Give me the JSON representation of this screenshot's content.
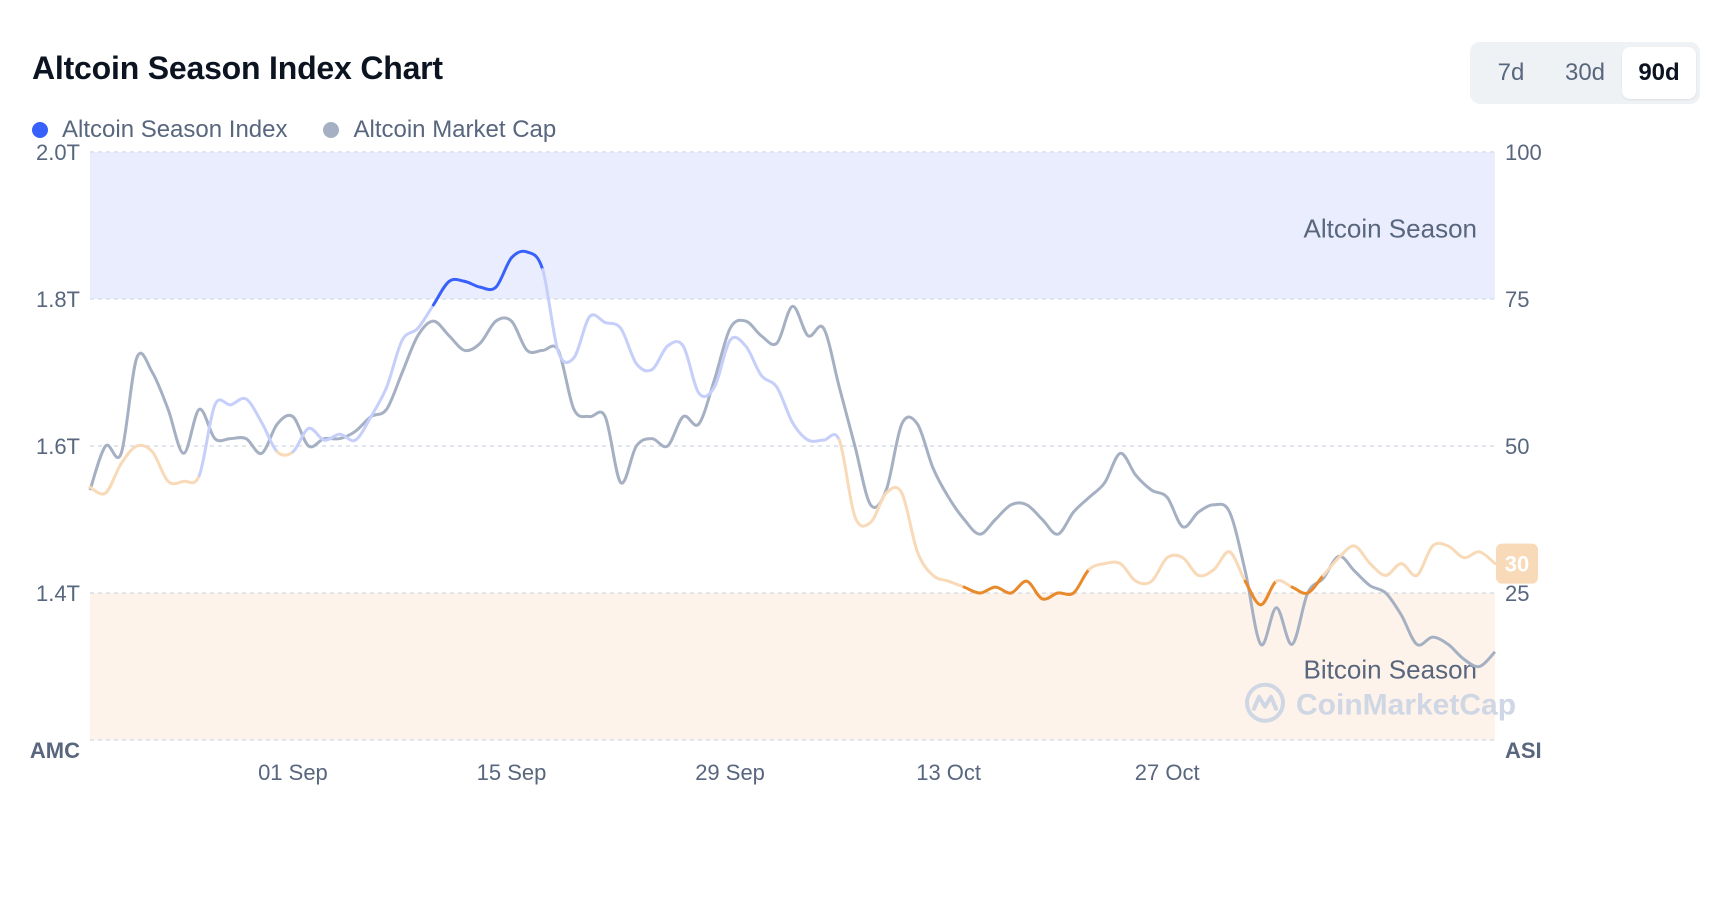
{
  "header": {
    "title": "Altcoin Season Index Chart"
  },
  "legend": [
    {
      "label": "Altcoin Season Index",
      "color": "#3861fb"
    },
    {
      "label": "Altcoin Market Cap",
      "color": "#a6b0c3"
    }
  ],
  "ranges": [
    {
      "label": "7d",
      "active": false
    },
    {
      "label": "30d",
      "active": false
    },
    {
      "label": "90d",
      "active": true
    }
  ],
  "zones": {
    "altcoin_season": "Altcoin Season",
    "bitcoin_season": "Bitcoin Season"
  },
  "watermark": "CoinMarketCap",
  "current_badge": "30",
  "colors": {
    "index_line_high": "#3861fb",
    "index_line_mid": "#c5cffa",
    "index_line_low_mid": "#f8d9b8",
    "index_line_low": "#e88a2b",
    "market_cap_line": "#a6b0c3",
    "altcoin_zone_fill": "#eaedfd",
    "bitcoin_zone_fill": "#fdf3ea",
    "badge_fill": "#f8d9b8"
  },
  "chart_data": {
    "type": "line",
    "x": [
      "2024-08-19",
      "2024-08-20",
      "2024-08-21",
      "2024-08-22",
      "2024-08-23",
      "2024-08-24",
      "2024-08-25",
      "2024-08-26",
      "2024-08-27",
      "2024-08-28",
      "2024-08-29",
      "2024-08-30",
      "2024-08-31",
      "2024-09-01",
      "2024-09-02",
      "2024-09-03",
      "2024-09-04",
      "2024-09-05",
      "2024-09-06",
      "2024-09-07",
      "2024-09-08",
      "2024-09-09",
      "2024-09-10",
      "2024-09-11",
      "2024-09-12",
      "2024-09-13",
      "2024-09-14",
      "2024-09-15",
      "2024-09-16",
      "2024-09-17",
      "2024-09-18",
      "2024-09-19",
      "2024-09-20",
      "2024-09-21",
      "2024-09-22",
      "2024-09-23",
      "2024-09-24",
      "2024-09-25",
      "2024-09-26",
      "2024-09-27",
      "2024-09-28",
      "2024-09-29",
      "2024-09-30",
      "2024-10-01",
      "2024-10-02",
      "2024-10-03",
      "2024-10-04",
      "2024-10-05",
      "2024-10-06",
      "2024-10-07",
      "2024-10-08",
      "2024-10-09",
      "2024-10-10",
      "2024-10-11",
      "2024-10-12",
      "2024-10-13",
      "2024-10-14",
      "2024-10-15",
      "2024-10-16",
      "2024-10-17",
      "2024-10-18",
      "2024-10-19",
      "2024-10-20",
      "2024-10-21",
      "2024-10-22",
      "2024-10-23",
      "2024-10-24",
      "2024-10-25",
      "2024-10-26",
      "2024-10-27",
      "2024-10-28",
      "2024-10-29",
      "2024-10-30",
      "2024-10-31",
      "2024-11-01",
      "2024-11-02",
      "2024-11-03",
      "2024-11-04",
      "2024-11-05",
      "2024-11-06",
      "2024-11-07",
      "2024-11-08",
      "2024-11-09",
      "2024-11-10",
      "2024-11-11",
      "2024-11-12",
      "2024-11-13",
      "2024-11-14",
      "2024-11-15",
      "2024-11-16",
      "2024-11-17"
    ],
    "x_ticks": [
      "01 Sep",
      "15 Sep",
      "29 Sep",
      "13 Oct",
      "27 Oct"
    ],
    "y_left": {
      "label": "AMC",
      "ticks": [
        "1.4T",
        "1.6T",
        "1.8T",
        "2.0T"
      ],
      "range": [
        1.2,
        2.0
      ],
      "unit": "T"
    },
    "y_right": {
      "label": "ASI",
      "ticks": [
        "25",
        "50",
        "75",
        "100"
      ],
      "range": [
        0,
        100
      ]
    },
    "series": [
      {
        "name": "Altcoin Season Index",
        "axis": "right",
        "values": [
          43,
          42,
          47,
          50,
          49,
          44,
          44,
          45,
          57,
          57,
          58,
          54,
          49,
          49,
          53,
          51,
          52,
          51,
          55,
          60,
          68,
          70,
          74,
          78,
          78,
          77,
          77,
          82,
          83,
          80,
          66,
          65,
          72,
          71,
          70,
          64,
          63,
          67,
          67,
          59,
          60,
          68,
          67,
          62,
          60,
          54,
          51,
          51,
          51,
          38,
          37,
          42,
          42,
          32,
          28,
          27,
          26,
          25,
          26,
          25,
          27,
          24,
          25,
          25,
          29,
          30,
          30,
          27,
          27,
          31,
          31,
          28,
          29,
          32,
          27,
          23,
          27,
          26,
          25,
          28,
          31,
          33,
          30,
          28,
          30,
          28,
          33,
          33,
          31,
          32,
          30
        ]
      },
      {
        "name": "Altcoin Market Cap",
        "axis": "left",
        "values": [
          1.54,
          1.6,
          1.59,
          1.72,
          1.7,
          1.65,
          1.59,
          1.65,
          1.61,
          1.61,
          1.61,
          1.59,
          1.63,
          1.64,
          1.6,
          1.61,
          1.61,
          1.62,
          1.64,
          1.65,
          1.7,
          1.75,
          1.77,
          1.75,
          1.73,
          1.74,
          1.77,
          1.77,
          1.73,
          1.73,
          1.73,
          1.65,
          1.64,
          1.64,
          1.55,
          1.6,
          1.61,
          1.6,
          1.64,
          1.63,
          1.69,
          1.76,
          1.77,
          1.75,
          1.74,
          1.79,
          1.75,
          1.76,
          1.68,
          1.6,
          1.52,
          1.54,
          1.63,
          1.63,
          1.57,
          1.53,
          1.5,
          1.48,
          1.5,
          1.52,
          1.52,
          1.5,
          1.48,
          1.51,
          1.53,
          1.55,
          1.59,
          1.56,
          1.54,
          1.53,
          1.49,
          1.51,
          1.52,
          1.51,
          1.43,
          1.33,
          1.38,
          1.33,
          1.4,
          1.42,
          1.45,
          1.43,
          1.41,
          1.4,
          1.37,
          1.33,
          1.34,
          1.33,
          1.31,
          1.3,
          1.32
        ]
      }
    ],
    "thresholds": {
      "altcoin_season": 75,
      "bitcoin_season": 25
    },
    "current_value": 30,
    "grid": true
  }
}
